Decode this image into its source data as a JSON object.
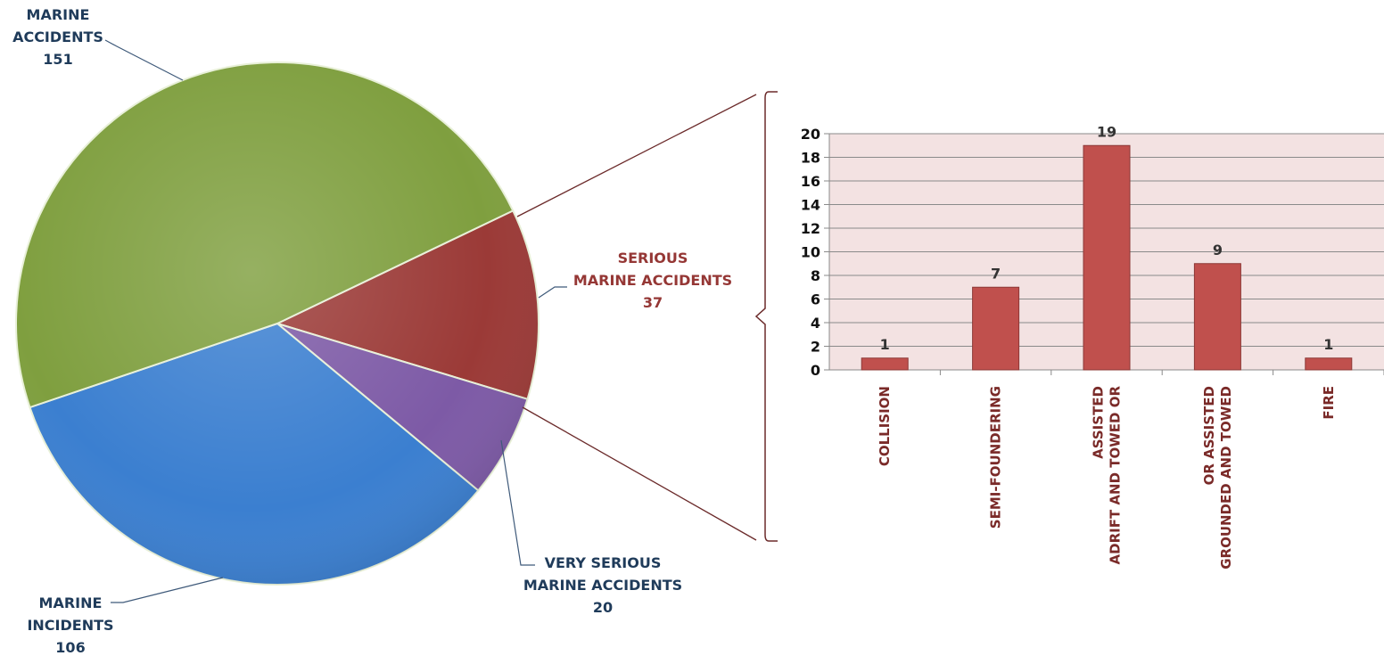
{
  "chart_data": [
    {
      "type": "pie",
      "slices": [
        {
          "label_lines": [
            "MARINE",
            "ACCIDENTS"
          ],
          "value": 151,
          "color": "#7f9f3f"
        },
        {
          "label_lines": [
            "SERIOUS",
            "MARINE ACCIDENTS"
          ],
          "value": 37,
          "color": "#9b3a37"
        },
        {
          "label_lines": [
            "VERY SERIOUS",
            "MARINE ACCIDENTS"
          ],
          "value": 20,
          "color": "#7d5aa6"
        },
        {
          "label_lines": [
            "MARINE",
            "INCIDENTS"
          ],
          "value": 106,
          "color": "#3b7fd0"
        }
      ]
    },
    {
      "type": "bar",
      "categories": [
        "COLLISION",
        "SEMI-FOUNDERING",
        "ADRIFT AND TOWED OR ASSISTED",
        "GROUNDED AND TOWED OR ASSISTED",
        "FIRE"
      ],
      "category_label_lines": [
        [
          "COLLISION"
        ],
        [
          "SEMI-FOUNDERING"
        ],
        [
          "ADRIFT AND TOWED OR",
          "ASSISTED"
        ],
        [
          "GROUNDED AND TOWED",
          "OR ASSISTED"
        ],
        [
          "FIRE"
        ]
      ],
      "values": [
        1,
        7,
        19,
        9,
        1
      ],
      "ylim": [
        0,
        20
      ],
      "yticks": [
        0,
        2,
        4,
        6,
        8,
        10,
        12,
        14,
        16,
        18,
        20
      ],
      "grid": true,
      "bar_color": "#c0504d",
      "plot_background": "#f3e2e2"
    }
  ]
}
